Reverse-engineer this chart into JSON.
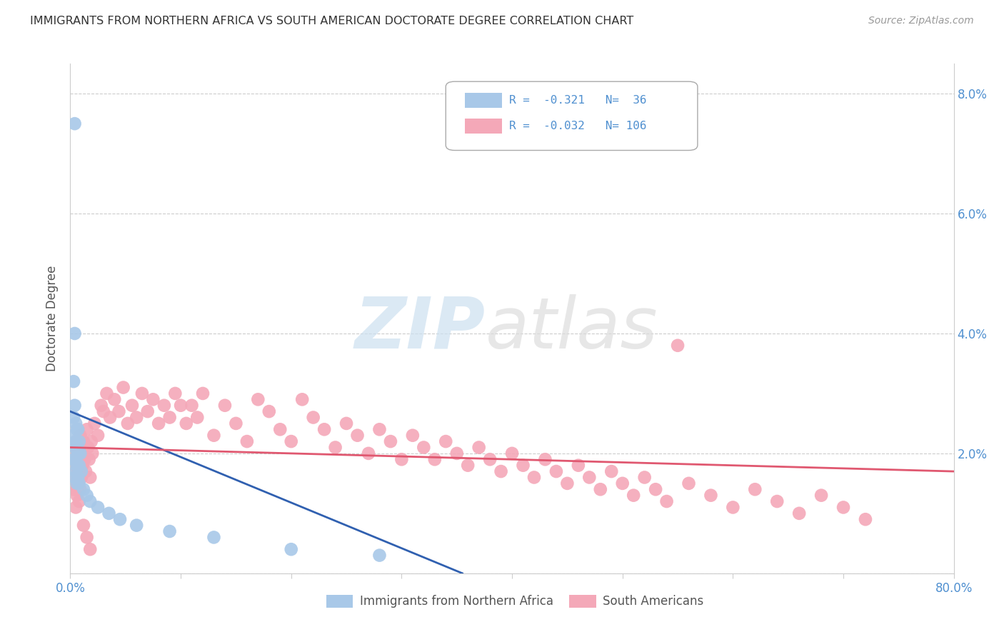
{
  "title": "IMMIGRANTS FROM NORTHERN AFRICA VS SOUTH AMERICAN DOCTORATE DEGREE CORRELATION CHART",
  "source": "Source: ZipAtlas.com",
  "ylabel": "Doctorate Degree",
  "xmin": 0.0,
  "xmax": 0.8,
  "ymin": 0.0,
  "ymax": 0.085,
  "ytick_vals": [
    0.0,
    0.02,
    0.04,
    0.06,
    0.08
  ],
  "ytick_labels_right": [
    "",
    "2.0%",
    "4.0%",
    "6.0%",
    "8.0%"
  ],
  "xtick_vals": [
    0.0,
    0.1,
    0.2,
    0.3,
    0.4,
    0.5,
    0.6,
    0.7,
    0.8
  ],
  "xtick_labels": [
    "0.0%",
    "",
    "",
    "",
    "",
    "",
    "",
    "",
    "80.0%"
  ],
  "blue_color": "#a8c8e8",
  "pink_color": "#f4a8b8",
  "blue_line_color": "#3060b0",
  "pink_line_color": "#e05870",
  "grid_color": "#cccccc",
  "spine_color": "#cccccc",
  "tick_label_color": "#5090d0",
  "ylabel_color": "#555555",
  "title_color": "#333333",
  "source_color": "#999999",
  "watermark_zip_color": "#cce0f0",
  "watermark_atlas_color": "#dddddd",
  "blue_line_x": [
    0.0,
    0.355
  ],
  "blue_line_y": [
    0.027,
    0.0
  ],
  "pink_line_x": [
    0.0,
    0.8
  ],
  "pink_line_y": [
    0.021,
    0.017
  ],
  "legend_r1": "R =  -0.321",
  "legend_n1": "N=  36",
  "legend_r2": "R =  -0.032",
  "legend_n2": "N= 106",
  "legend_label1": "Immigrants from Northern Africa",
  "legend_label2": "South Americans",
  "blue_x": [
    0.004,
    0.004,
    0.003,
    0.005,
    0.006,
    0.007,
    0.003,
    0.005,
    0.008,
    0.006,
    0.004,
    0.007,
    0.009,
    0.005,
    0.003,
    0.008,
    0.006,
    0.01,
    0.005,
    0.007,
    0.004,
    0.006,
    0.008,
    0.012,
    0.015,
    0.018,
    0.025,
    0.035,
    0.045,
    0.06,
    0.09,
    0.13,
    0.2,
    0.28,
    0.004,
    0.003
  ],
  "blue_y": [
    0.075,
    0.028,
    0.026,
    0.025,
    0.024,
    0.024,
    0.023,
    0.022,
    0.022,
    0.021,
    0.021,
    0.02,
    0.02,
    0.019,
    0.019,
    0.018,
    0.018,
    0.017,
    0.017,
    0.016,
    0.016,
    0.015,
    0.015,
    0.014,
    0.013,
    0.012,
    0.011,
    0.01,
    0.009,
    0.008,
    0.007,
    0.006,
    0.004,
    0.003,
    0.04,
    0.032
  ],
  "pink_x": [
    0.003,
    0.004,
    0.005,
    0.006,
    0.007,
    0.008,
    0.009,
    0.01,
    0.011,
    0.012,
    0.013,
    0.014,
    0.015,
    0.016,
    0.017,
    0.018,
    0.019,
    0.02,
    0.022,
    0.025,
    0.028,
    0.03,
    0.033,
    0.036,
    0.04,
    0.044,
    0.048,
    0.052,
    0.056,
    0.06,
    0.065,
    0.07,
    0.075,
    0.08,
    0.085,
    0.09,
    0.095,
    0.1,
    0.105,
    0.11,
    0.115,
    0.12,
    0.13,
    0.14,
    0.15,
    0.16,
    0.17,
    0.18,
    0.19,
    0.2,
    0.21,
    0.22,
    0.23,
    0.24,
    0.25,
    0.26,
    0.27,
    0.28,
    0.29,
    0.3,
    0.31,
    0.32,
    0.33,
    0.34,
    0.35,
    0.36,
    0.37,
    0.38,
    0.39,
    0.4,
    0.41,
    0.42,
    0.43,
    0.44,
    0.45,
    0.46,
    0.47,
    0.48,
    0.49,
    0.5,
    0.51,
    0.52,
    0.53,
    0.54,
    0.56,
    0.58,
    0.6,
    0.62,
    0.64,
    0.66,
    0.68,
    0.7,
    0.72,
    0.004,
    0.005,
    0.006,
    0.007,
    0.008,
    0.009,
    0.01,
    0.012,
    0.015,
    0.018,
    0.003,
    0.003,
    0.55
  ],
  "pink_y": [
    0.02,
    0.018,
    0.022,
    0.019,
    0.021,
    0.017,
    0.023,
    0.02,
    0.018,
    0.022,
    0.019,
    0.017,
    0.024,
    0.021,
    0.019,
    0.016,
    0.022,
    0.02,
    0.025,
    0.023,
    0.028,
    0.027,
    0.03,
    0.026,
    0.029,
    0.027,
    0.031,
    0.025,
    0.028,
    0.026,
    0.03,
    0.027,
    0.029,
    0.025,
    0.028,
    0.026,
    0.03,
    0.028,
    0.025,
    0.028,
    0.026,
    0.03,
    0.023,
    0.028,
    0.025,
    0.022,
    0.029,
    0.027,
    0.024,
    0.022,
    0.029,
    0.026,
    0.024,
    0.021,
    0.025,
    0.023,
    0.02,
    0.024,
    0.022,
    0.019,
    0.023,
    0.021,
    0.019,
    0.022,
    0.02,
    0.018,
    0.021,
    0.019,
    0.017,
    0.02,
    0.018,
    0.016,
    0.019,
    0.017,
    0.015,
    0.018,
    0.016,
    0.014,
    0.017,
    0.015,
    0.013,
    0.016,
    0.014,
    0.012,
    0.015,
    0.013,
    0.011,
    0.014,
    0.012,
    0.01,
    0.013,
    0.011,
    0.009,
    0.014,
    0.011,
    0.013,
    0.015,
    0.012,
    0.014,
    0.016,
    0.008,
    0.006,
    0.004,
    0.016,
    0.014,
    0.038
  ]
}
